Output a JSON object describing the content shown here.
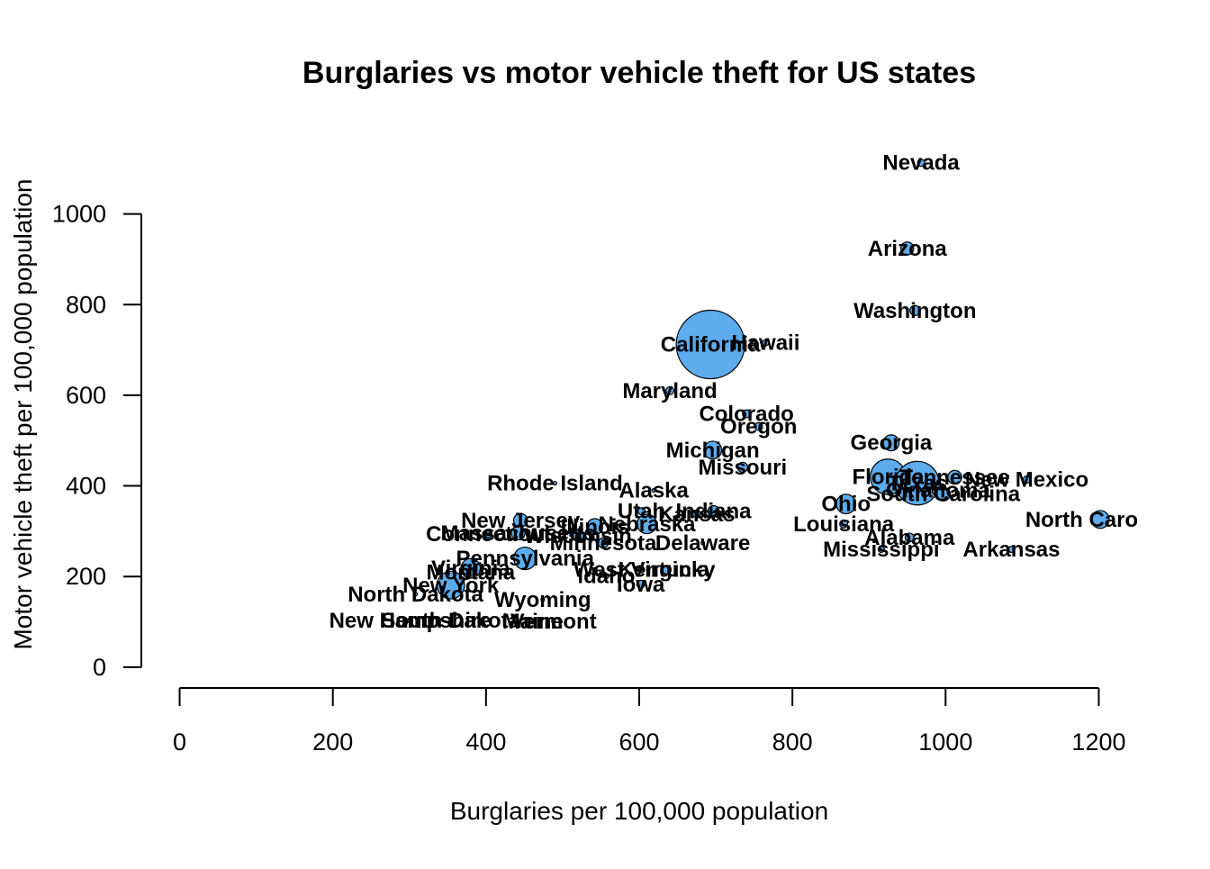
{
  "chart_data": {
    "type": "scatter",
    "title": "Burglaries vs motor vehicle theft for US states",
    "x_label": "Burglaries per 100,000 population",
    "y_label": "Motor vehicle theft per 100,000 population",
    "color": "#5cacee",
    "labels": [
      "Nevada",
      "Arizona",
      "Washington",
      "California",
      "Hawaii",
      "Maryland",
      "Colorado",
      "Oregon",
      "Georgia",
      "Michigan",
      "Missouri",
      "Florida",
      "Texas",
      "Tennessee",
      "New Mexico",
      "Oklahoma",
      "South Carolina",
      "Rhode Island",
      "Alaska",
      "Ohio",
      "Utah",
      "Indiana",
      "Kansas",
      "Louisiana",
      "New Jersey",
      "North Carolina",
      "Illinois",
      "Massachusetts",
      "Connecticut",
      "Nebraska",
      "Minnesota",
      "Delaware",
      "Alabama",
      "Mississippi",
      "Arkansas",
      "Pennsylvania",
      "West Virginia",
      "Kentucky",
      "Idaho",
      "Iowa",
      "Montana",
      "Virginia",
      "New York",
      "North Dakota",
      "Wyoming",
      "South Dakota",
      "New Hampshire",
      "Maine",
      "Vermont",
      "Wisconsin"
    ],
    "x": [
      968,
      950,
      960,
      693,
      765,
      640,
      740,
      756,
      929,
      696,
      735,
      925,
      963,
      1012,
      1106,
      990,
      997,
      490,
      619,
      870,
      603,
      697,
      675,
      867,
      445,
      1202,
      542,
      442,
      403,
      610,
      553,
      683,
      953,
      916,
      1086,
      451,
      603,
      636,
      557,
      602,
      380,
      380,
      354,
      308,
      474,
      354,
      301,
      461,
      488,
      520
    ],
    "values": [
      1113,
      924,
      787,
      712,
      716,
      610,
      559,
      531,
      495,
      479,
      441,
      420,
      406,
      419,
      414,
      390,
      382,
      406,
      390,
      360,
      344,
      344,
      338,
      316,
      324,
      326,
      310,
      296,
      294,
      316,
      274,
      274,
      286,
      260,
      260,
      240,
      215,
      215,
      201,
      183,
      209,
      218,
      181,
      161,
      149,
      103,
      103,
      101,
      101,
      290
    ],
    "sizes": [
      0.4,
      1.3,
      0.8,
      37,
      0.3,
      0.5,
      0.5,
      0.5,
      2,
      2.5,
      0.8,
      10,
      15,
      1.5,
      0.4,
      1,
      1.5,
      0.1,
      0.1,
      3,
      0.4,
      1,
      0.5,
      0.5,
      1.5,
      2.5,
      2,
      1.5,
      0.4,
      3,
      0.8,
      0.1,
      0.6,
      0.3,
      0.3,
      4,
      0.3,
      0.6,
      0.2,
      0.5,
      0.2,
      3,
      6,
      0.1,
      0.1,
      0.1,
      0.2,
      0.2,
      0.1,
      1
    ],
    "xlim": [
      -50,
      1250
    ],
    "ylim": [
      -46,
      1190
    ],
    "xticks": [
      0,
      200,
      400,
      600,
      800,
      1000,
      1200
    ],
    "yticks": [
      0,
      200,
      400,
      600,
      800,
      1000
    ]
  }
}
